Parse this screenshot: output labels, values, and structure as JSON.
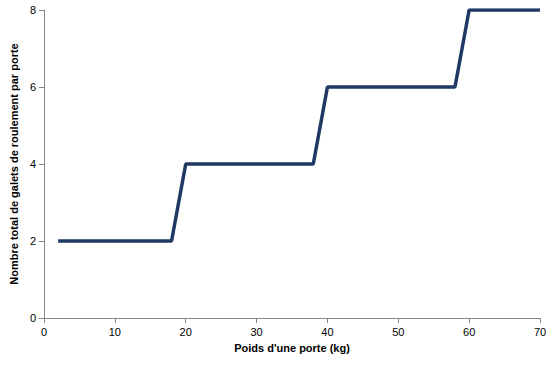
{
  "chart_data": {
    "type": "line",
    "x": [
      2,
      18,
      20,
      38,
      40,
      58,
      60,
      70
    ],
    "values": [
      2,
      2,
      4,
      4,
      6,
      6,
      8,
      8
    ],
    "color": "#203864",
    "xlabel": "Poids d'une porte (kg)",
    "ylabel": "Nombre total de galets de roulement par porte",
    "xlim": [
      0,
      70
    ],
    "xticks": [
      0,
      10,
      20,
      30,
      40,
      50,
      60,
      70
    ],
    "ylim": [
      0,
      8
    ],
    "yticks": [
      0,
      2,
      4,
      6,
      8
    ],
    "grid": false
  }
}
